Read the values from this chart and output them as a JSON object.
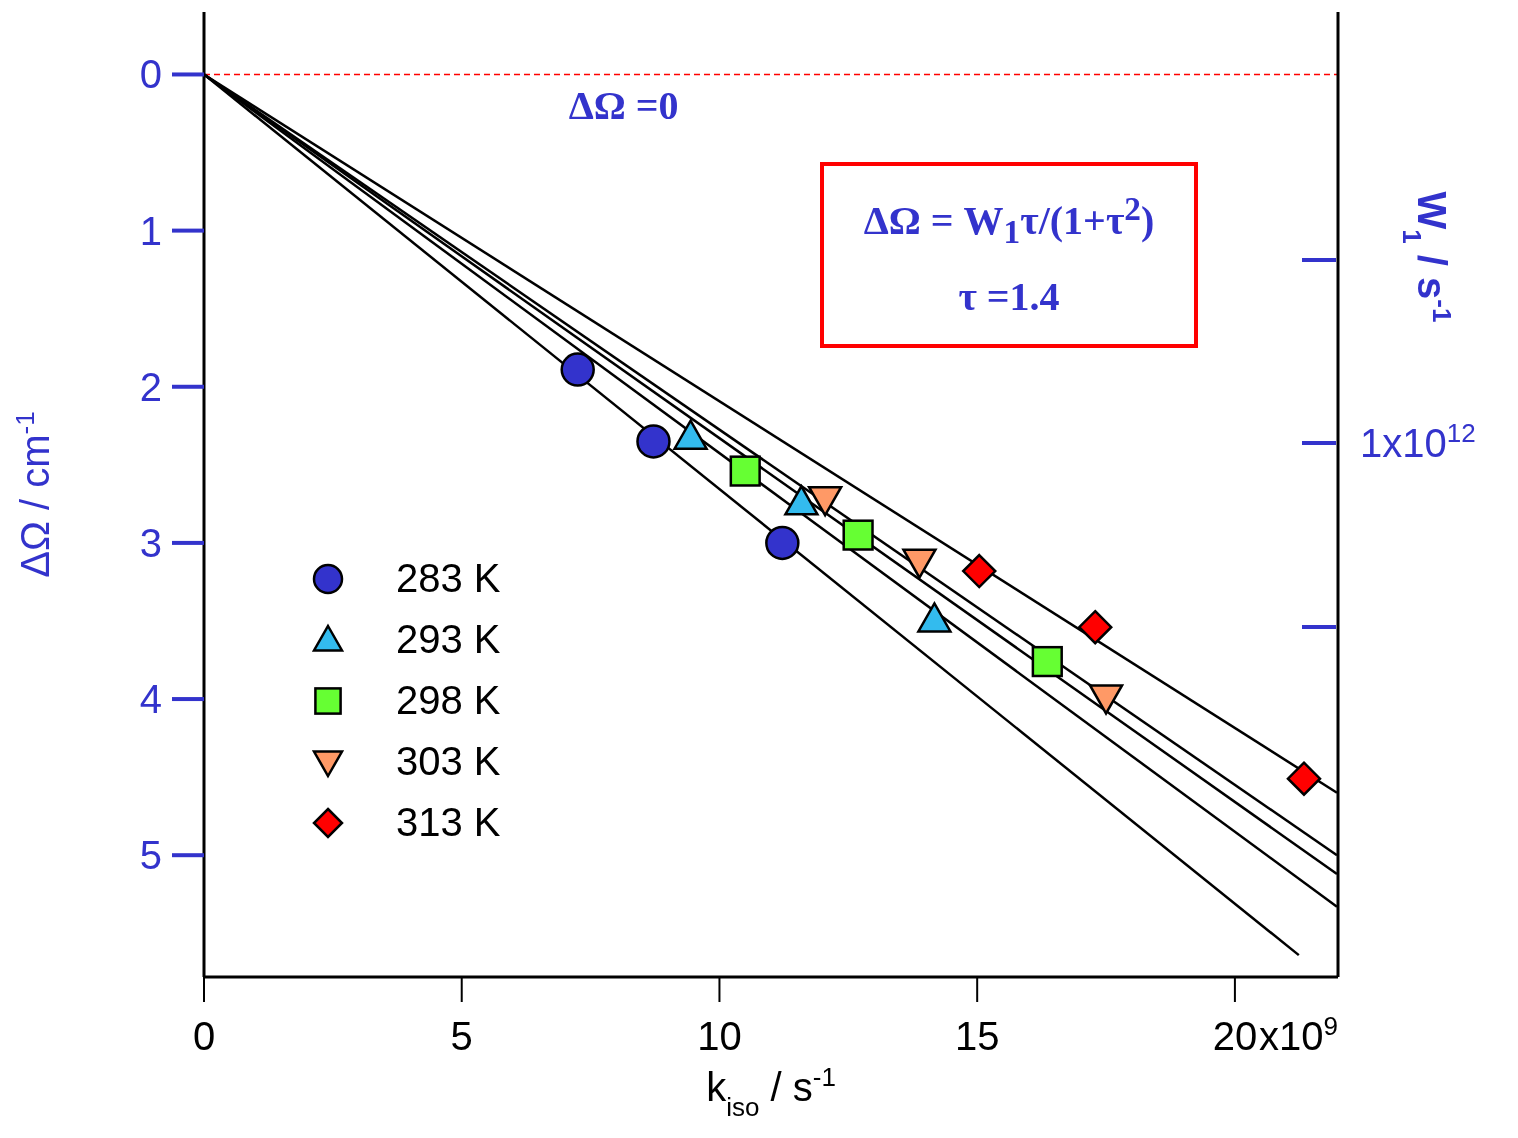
{
  "chart_data": {
    "type": "scatter",
    "xlabel": "k$_{iso}$ / s$^{-1}$",
    "ylabel": "ΔΩ / cm$^{-1}$",
    "y2label": "W$_{1}$ / s$^{-1}$",
    "xlim": [
      0,
      22
    ],
    "xticks": [
      0,
      5,
      10,
      15,
      20
    ],
    "ylim": [
      5.78,
      -0.4
    ],
    "yticks": [
      0,
      1,
      2,
      3,
      4,
      5
    ],
    "legend": "left",
    "ref_lines": [
      {
        "axis": "y",
        "value": 0,
        "label": "ΔΩ =0",
        "color": "#ff0000",
        "line_style": "dashed"
      }
    ],
    "annotations": [
      "ΔΩ = W$_{1}$τ/(1+τ$^{2}$)",
      "τ =1.4",
      "1x10$^{12}$",
      "x10$^{9}$"
    ],
    "series": [
      {
        "name": "283 K",
        "color": "#3333cc",
        "marker": "circle",
        "x": [
          7.25,
          8.72,
          11.22
        ],
        "values": [
          1.89,
          2.35,
          3.0
        ]
      },
      {
        "name": "293 K",
        "color": "#33bbee",
        "marker": "triangle",
        "x": [
          9.44,
          11.59,
          14.17
        ],
        "values": [
          2.32,
          2.74,
          3.49
        ]
      },
      {
        "name": "298 K",
        "color": "#66ff33",
        "marker": "square",
        "x": [
          10.5,
          12.69,
          16.36
        ],
        "values": [
          2.54,
          2.95,
          3.76
        ]
      },
      {
        "name": "303 K",
        "color": "#ff9966",
        "marker": "triangle-down",
        "x": [
          12.05,
          13.88,
          17.5
        ],
        "values": [
          2.72,
          3.12,
          3.99
        ]
      },
      {
        "name": "313 K",
        "color": "#ff0000",
        "marker": "diamond",
        "x": [
          15.04,
          17.29,
          21.34
        ],
        "values": [
          3.18,
          3.54,
          4.51
        ]
      },
      {
        "type": "line",
        "color": "#000000",
        "x": [
          0,
          21.24
        ],
        "values": [
          0,
          5.64
        ]
      },
      {
        "type": "line",
        "color": "#000000",
        "x": [
          0,
          21.98
        ],
        "values": [
          0,
          5.33
        ]
      },
      {
        "type": "line",
        "color": "#000000",
        "x": [
          0,
          21.98
        ],
        "values": [
          0,
          5.12
        ]
      },
      {
        "type": "line",
        "color": "#000000",
        "x": [
          0,
          21.98
        ],
        "values": [
          0,
          5.0
        ]
      },
      {
        "type": "line",
        "color": "#000000",
        "x": [
          0,
          21.98
        ],
        "values": [
          0,
          4.6
        ]
      }
    ]
  }
}
